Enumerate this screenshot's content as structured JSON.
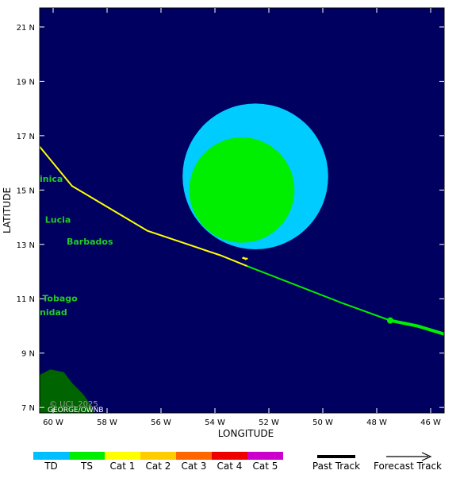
{
  "map": {
    "lon_range": [
      -60.5,
      -45.5
    ],
    "lat_range": [
      6.8,
      21.7
    ],
    "ocean_color": "#000060",
    "land_color": "#006400",
    "x_axis_title": "LONGITUDE",
    "y_axis_title": "LATITUDE",
    "lon_ticks": [
      {
        "value": -60,
        "label": "60 W"
      },
      {
        "value": -58,
        "label": "58 W"
      },
      {
        "value": -56,
        "label": "56 W"
      },
      {
        "value": -54,
        "label": "54 W"
      },
      {
        "value": -52,
        "label": "52 W"
      },
      {
        "value": -50,
        "label": "50 W"
      },
      {
        "value": -48,
        "label": "48 W"
      },
      {
        "value": -46,
        "label": "46 W"
      }
    ],
    "lat_ticks": [
      {
        "value": 21,
        "label": "21 N"
      },
      {
        "value": 19,
        "label": "19 N"
      },
      {
        "value": 17,
        "label": "17 N"
      },
      {
        "value": 15,
        "label": "15 N"
      },
      {
        "value": 13,
        "label": "13 N"
      },
      {
        "value": 11,
        "label": "11 N"
      },
      {
        "value": 9,
        "label": "9 N"
      },
      {
        "value": 7,
        "label": "7 N"
      }
    ],
    "place_labels": [
      {
        "text": "inica",
        "lon": -60.5,
        "lat": 15.3
      },
      {
        "text": "Lucia",
        "lon": -60.3,
        "lat": 13.8
      },
      {
        "text": "Barbados",
        "lon": -59.5,
        "lat": 13.0
      },
      {
        "text": "Tobago",
        "lon": -60.4,
        "lat": 10.9
      },
      {
        "text": "nidad",
        "lon": -60.5,
        "lat": 10.4
      }
    ],
    "copyright_text": "© UCL 2025",
    "credit_text": "GEORGE/OWNB"
  },
  "storm": {
    "ts_wind_radius": {
      "center_lon": -52.5,
      "center_lat": 15.5,
      "radius_deg": 2.7,
      "color": "#00ccff"
    },
    "cat_wind_radius": {
      "center_lon": -53.0,
      "center_lat": 15.0,
      "radius_deg": 1.95,
      "color": "#00ee00"
    },
    "past_track": {
      "color": "#ffff00",
      "points": [
        [
          -60.5,
          16.6
        ],
        [
          -59.3,
          15.15
        ],
        [
          -56.5,
          13.5
        ],
        [
          -53.8,
          12.6
        ],
        [
          -52.8,
          12.2
        ]
      ]
    },
    "forecast_track": {
      "color": "#00ee00",
      "points": [
        [
          -52.8,
          12.2
        ],
        [
          -49.3,
          10.85
        ],
        [
          -47.5,
          10.2
        ],
        [
          -46.5,
          10.0
        ],
        [
          -45.5,
          9.7
        ]
      ]
    },
    "forecast_point": {
      "lon": -47.5,
      "lat": 10.2
    },
    "current_marker": {
      "lon": -52.9,
      "lat": 12.5
    }
  },
  "legend": {
    "categories": [
      {
        "label": "TD",
        "color": "#00bfff"
      },
      {
        "label": "TS",
        "color": "#00ee00"
      },
      {
        "label": "Cat 1",
        "color": "#ffff00"
      },
      {
        "label": "Cat 2",
        "color": "#ffcc00"
      },
      {
        "label": "Cat 3",
        "color": "#ff6600"
      },
      {
        "label": "Cat 4",
        "color": "#ee0000"
      },
      {
        "label": "Cat 5",
        "color": "#cc00cc"
      }
    ],
    "past_track_label": "Past Track",
    "forecast_track_label": "Forecast Track"
  }
}
